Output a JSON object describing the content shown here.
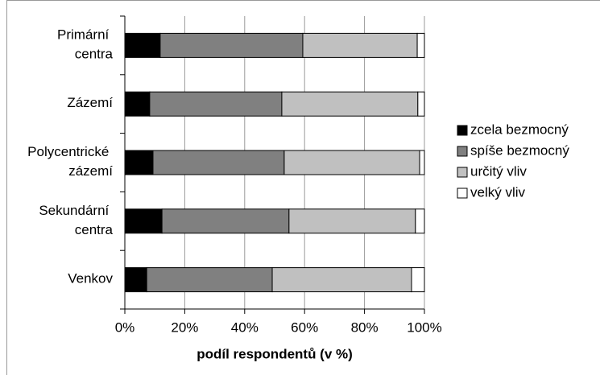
{
  "chart_data": {
    "type": "stacked-bar-horizontal",
    "x_label": "podíl respondentů (v %)",
    "categories": [
      "Primární centra",
      "Zázemí",
      "Polycentrické zázemí",
      "Sekundární centra",
      "Venkov"
    ],
    "series": [
      {
        "name": "zcela bezmocný",
        "color": "#000000",
        "values": [
          11.8,
          8.3,
          9.4,
          12.4,
          7.3
        ]
      },
      {
        "name": "spíše bezmocný",
        "color": "#808080",
        "values": [
          47.6,
          44.1,
          43.8,
          42.4,
          41.9
        ]
      },
      {
        "name": "určitý vliv",
        "color": "#c0c0c0",
        "values": [
          38.2,
          45.4,
          45.2,
          42.2,
          46.5
        ]
      },
      {
        "name": "velký vliv",
        "color": "#ffffff",
        "values": [
          2.4,
          2.2,
          1.6,
          3.0,
          4.3
        ]
      }
    ],
    "xlim": [
      0,
      100
    ],
    "xticks": [
      {
        "value": 0,
        "label": "0%"
      },
      {
        "value": 20,
        "label": "20%"
      },
      {
        "value": 40,
        "label": "40%"
      },
      {
        "value": 60,
        "label": "60%"
      },
      {
        "value": 80,
        "label": "80%"
      },
      {
        "value": 100,
        "label": "100%"
      }
    ],
    "grid": true,
    "legend": "right"
  }
}
